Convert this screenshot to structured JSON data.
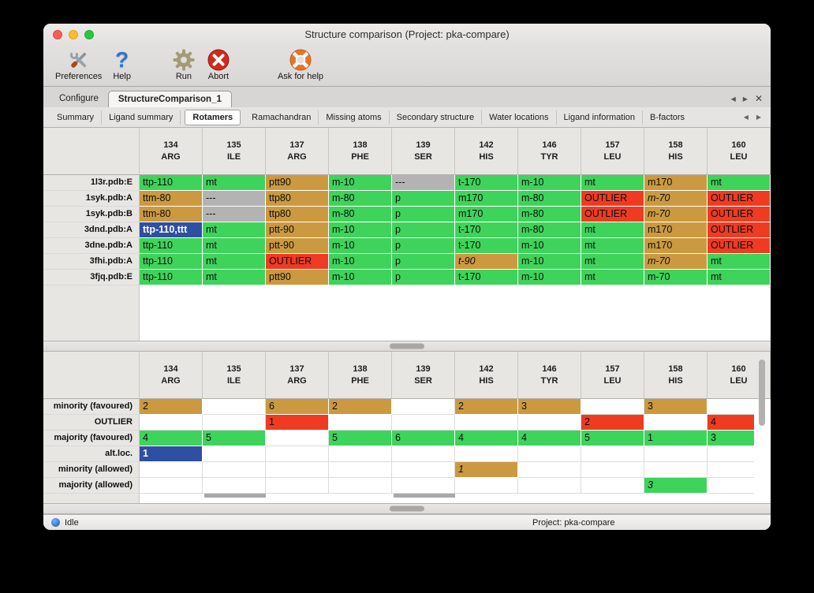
{
  "window": {
    "title": "Structure comparison (Project: pka-compare)"
  },
  "toolbar": {
    "items": [
      {
        "label": "Preferences",
        "icon": "crossed-tools-icon"
      },
      {
        "label": "Help",
        "icon": "question-mark-icon"
      },
      {
        "label": "Run",
        "icon": "gear-icon"
      },
      {
        "label": "Abort",
        "icon": "red-x-circle-icon"
      },
      {
        "label": "Ask for help",
        "icon": "lifebuoy-icon"
      }
    ],
    "help_glyph": "?"
  },
  "tabs": {
    "items": [
      {
        "label": "Configure",
        "active": false
      },
      {
        "label": "StructureComparison_1",
        "active": true
      }
    ],
    "nav": {
      "prev": "◀",
      "next": "▶",
      "close": "✕"
    }
  },
  "subtabs": {
    "items": [
      {
        "label": "Summary",
        "active": false
      },
      {
        "label": "Ligand summary",
        "active": false
      },
      {
        "label": "Rotamers",
        "active": true
      },
      {
        "label": "Ramachandran",
        "active": false
      },
      {
        "label": "Missing atoms",
        "active": false
      },
      {
        "label": "Secondary structure",
        "active": false
      },
      {
        "label": "Water locations",
        "active": false
      },
      {
        "label": "Ligand information",
        "active": false
      },
      {
        "label": "B-factors",
        "active": false
      }
    ],
    "nav": {
      "prev": "◀",
      "next": "▶"
    }
  },
  "columns": [
    {
      "num": "134",
      "res": "ARG"
    },
    {
      "num": "135",
      "res": "ILE"
    },
    {
      "num": "137",
      "res": "ARG"
    },
    {
      "num": "138",
      "res": "PHE"
    },
    {
      "num": "139",
      "res": "SER"
    },
    {
      "num": "142",
      "res": "HIS"
    },
    {
      "num": "146",
      "res": "TYR"
    },
    {
      "num": "157",
      "res": "LEU"
    },
    {
      "num": "158",
      "res": "HIS"
    },
    {
      "num": "160",
      "res": "LEU"
    }
  ],
  "colors": {
    "green": "#3ed35a",
    "tan": "#cb9a40",
    "red": "#ee3b22",
    "gray": "#b3b3b3",
    "blue": "#2e4fa2"
  },
  "top_table": {
    "rows": [
      {
        "label": "1l3r.pdb:E",
        "cells": [
          {
            "t": "ttp-110",
            "s": "green"
          },
          {
            "t": "mt",
            "s": "green"
          },
          {
            "t": "ptt90",
            "s": "tan"
          },
          {
            "t": "m-10",
            "s": "green"
          },
          {
            "t": "---",
            "s": "gray"
          },
          {
            "t": "t-170",
            "s": "green"
          },
          {
            "t": "m-10",
            "s": "green"
          },
          {
            "t": "mt",
            "s": "green"
          },
          {
            "t": "m170",
            "s": "tan"
          },
          {
            "t": "mt",
            "s": "green"
          }
        ]
      },
      {
        "label": "1syk.pdb:A",
        "cells": [
          {
            "t": "ttm-80",
            "s": "tan"
          },
          {
            "t": "---",
            "s": "gray"
          },
          {
            "t": "ttp80",
            "s": "tan"
          },
          {
            "t": "m-80",
            "s": "green"
          },
          {
            "t": "p",
            "s": "green"
          },
          {
            "t": "m170",
            "s": "green"
          },
          {
            "t": "m-80",
            "s": "green"
          },
          {
            "t": "OUTLIER",
            "s": "red"
          },
          {
            "t": "m-70",
            "s": "tan",
            "i": true
          },
          {
            "t": "OUTLIER",
            "s": "red"
          }
        ]
      },
      {
        "label": "1syk.pdb:B",
        "cells": [
          {
            "t": "ttm-80",
            "s": "tan"
          },
          {
            "t": "---",
            "s": "gray"
          },
          {
            "t": "ttp80",
            "s": "tan"
          },
          {
            "t": "m-80",
            "s": "green"
          },
          {
            "t": "p",
            "s": "green"
          },
          {
            "t": "m170",
            "s": "green"
          },
          {
            "t": "m-80",
            "s": "green"
          },
          {
            "t": "OUTLIER",
            "s": "red"
          },
          {
            "t": "m-70",
            "s": "tan",
            "i": true
          },
          {
            "t": "OUTLIER",
            "s": "red"
          }
        ]
      },
      {
        "label": "3dnd.pdb:A",
        "cells": [
          {
            "t": "ttp-110,ttt",
            "s": "blue"
          },
          {
            "t": "mt",
            "s": "green"
          },
          {
            "t": "ptt-90",
            "s": "tan"
          },
          {
            "t": "m-10",
            "s": "green"
          },
          {
            "t": "p",
            "s": "green"
          },
          {
            "t": "t-170",
            "s": "green"
          },
          {
            "t": "m-80",
            "s": "green"
          },
          {
            "t": "mt",
            "s": "green"
          },
          {
            "t": "m170",
            "s": "tan"
          },
          {
            "t": "OUTLIER",
            "s": "red"
          }
        ]
      },
      {
        "label": "3dne.pdb:A",
        "cells": [
          {
            "t": "ttp-110",
            "s": "green"
          },
          {
            "t": "mt",
            "s": "green"
          },
          {
            "t": "ptt-90",
            "s": "tan"
          },
          {
            "t": "m-10",
            "s": "green"
          },
          {
            "t": "p",
            "s": "green"
          },
          {
            "t": "t-170",
            "s": "green"
          },
          {
            "t": "m-10",
            "s": "green"
          },
          {
            "t": "mt",
            "s": "green"
          },
          {
            "t": "m170",
            "s": "tan"
          },
          {
            "t": "OUTLIER",
            "s": "red"
          }
        ]
      },
      {
        "label": "3fhi.pdb:A",
        "cells": [
          {
            "t": "ttp-110",
            "s": "green"
          },
          {
            "t": "mt",
            "s": "green"
          },
          {
            "t": "OUTLIER",
            "s": "red"
          },
          {
            "t": "m-10",
            "s": "green"
          },
          {
            "t": "p",
            "s": "green"
          },
          {
            "t": "t-90",
            "s": "tan",
            "i": true
          },
          {
            "t": "m-10",
            "s": "green"
          },
          {
            "t": "mt",
            "s": "green"
          },
          {
            "t": "m-70",
            "s": "tan",
            "i": true
          },
          {
            "t": "mt",
            "s": "green"
          }
        ]
      },
      {
        "label": "3fjq.pdb:E",
        "cells": [
          {
            "t": "ttp-110",
            "s": "green"
          },
          {
            "t": "mt",
            "s": "green"
          },
          {
            "t": "ptt90",
            "s": "tan"
          },
          {
            "t": "m-10",
            "s": "green"
          },
          {
            "t": "p",
            "s": "green"
          },
          {
            "t": "t-170",
            "s": "green"
          },
          {
            "t": "m-10",
            "s": "green"
          },
          {
            "t": "mt",
            "s": "green"
          },
          {
            "t": "m-70",
            "s": "green"
          },
          {
            "t": "mt",
            "s": "green"
          }
        ]
      }
    ]
  },
  "bottom_table": {
    "rows": [
      {
        "label": "minority (favoured)",
        "cells": [
          {
            "t": "2",
            "s": "tan"
          },
          {
            "s": "empty"
          },
          {
            "t": "6",
            "s": "tan"
          },
          {
            "t": "2",
            "s": "tan"
          },
          {
            "s": "empty"
          },
          {
            "t": "2",
            "s": "tan"
          },
          {
            "t": "3",
            "s": "tan"
          },
          {
            "s": "empty"
          },
          {
            "t": "3",
            "s": "tan"
          },
          {
            "s": "empty"
          }
        ]
      },
      {
        "label": "OUTLIER",
        "cells": [
          {
            "s": "empty"
          },
          {
            "s": "empty"
          },
          {
            "t": "1",
            "s": "red"
          },
          {
            "s": "empty"
          },
          {
            "s": "empty"
          },
          {
            "s": "empty"
          },
          {
            "s": "empty"
          },
          {
            "t": "2",
            "s": "red"
          },
          {
            "s": "empty"
          },
          {
            "t": "4",
            "s": "red"
          }
        ]
      },
      {
        "label": "majority (favoured)",
        "cells": [
          {
            "t": "4",
            "s": "green"
          },
          {
            "t": "5",
            "s": "green"
          },
          {
            "s": "empty"
          },
          {
            "t": "5",
            "s": "green"
          },
          {
            "t": "6",
            "s": "green"
          },
          {
            "t": "4",
            "s": "green"
          },
          {
            "t": "4",
            "s": "green"
          },
          {
            "t": "5",
            "s": "green"
          },
          {
            "t": "1",
            "s": "green"
          },
          {
            "t": "3",
            "s": "green"
          }
        ]
      },
      {
        "label": "alt.loc.",
        "cells": [
          {
            "t": "1",
            "s": "blue"
          },
          {
            "s": "empty"
          },
          {
            "s": "empty"
          },
          {
            "s": "empty"
          },
          {
            "s": "empty"
          },
          {
            "s": "empty"
          },
          {
            "s": "empty"
          },
          {
            "s": "empty"
          },
          {
            "s": "empty"
          },
          {
            "s": "empty"
          }
        ]
      },
      {
        "label": "minority (allowed)",
        "cells": [
          {
            "s": "empty"
          },
          {
            "s": "empty"
          },
          {
            "s": "empty"
          },
          {
            "s": "empty"
          },
          {
            "s": "empty"
          },
          {
            "t": "1",
            "s": "tan",
            "i": true
          },
          {
            "s": "empty"
          },
          {
            "s": "empty"
          },
          {
            "s": "empty"
          },
          {
            "s": "empty"
          }
        ]
      },
      {
        "label": "majority (allowed)",
        "cells": [
          {
            "s": "empty"
          },
          {
            "s": "empty"
          },
          {
            "s": "empty"
          },
          {
            "s": "empty"
          },
          {
            "s": "empty"
          },
          {
            "s": "empty"
          },
          {
            "s": "empty"
          },
          {
            "s": "empty"
          },
          {
            "t": "3",
            "s": "green",
            "i": true
          },
          {
            "s": "empty"
          }
        ]
      }
    ]
  },
  "statusbar": {
    "state": "Idle",
    "project": "Project: pka-compare"
  }
}
